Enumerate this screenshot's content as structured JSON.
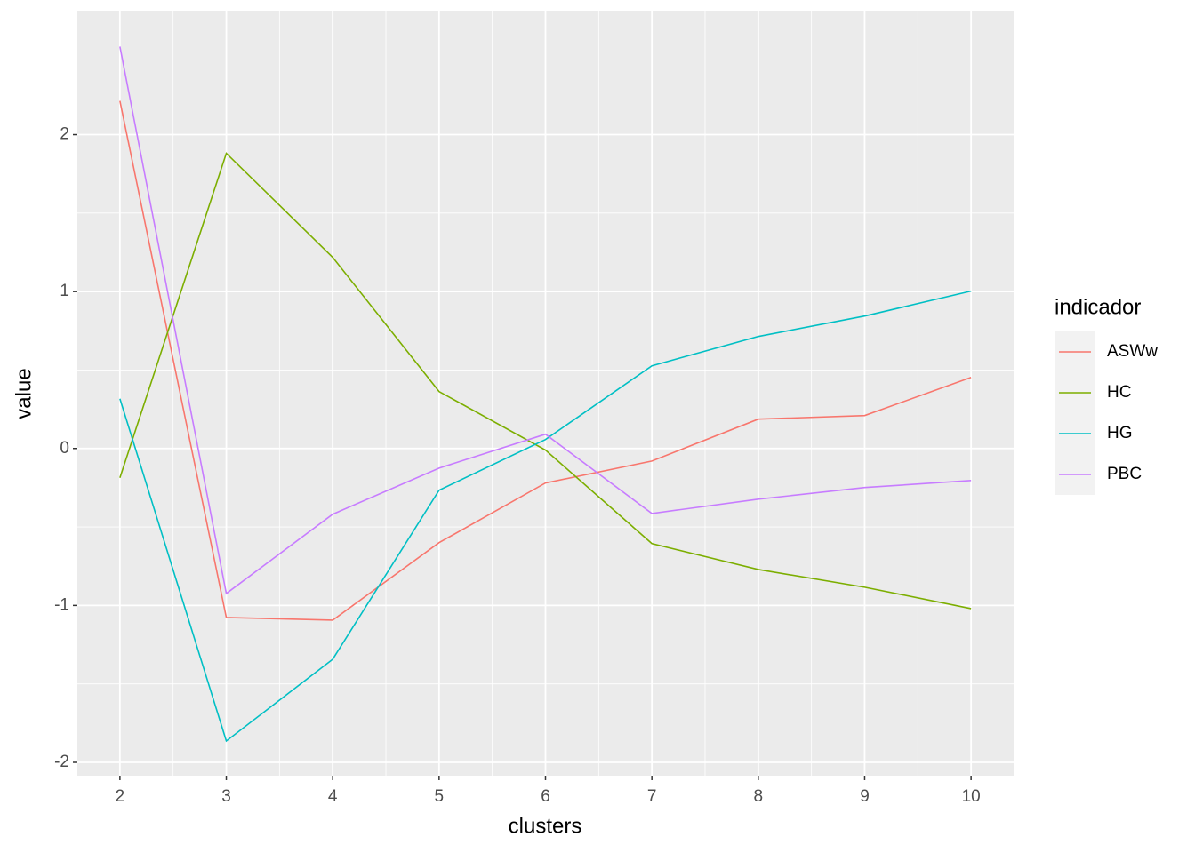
{
  "chart_data": {
    "type": "line",
    "x_label": "clusters",
    "y_label": "value",
    "legend_title": "indicador",
    "x": [
      2,
      3,
      4,
      5,
      6,
      7,
      8,
      9,
      10
    ],
    "series": [
      {
        "name": "ASWw",
        "color": "#F8766D",
        "values": [
          2.215,
          -1.077,
          -1.094,
          -0.6,
          -0.22,
          -0.08,
          0.187,
          0.21,
          0.453
        ]
      },
      {
        "name": "HC",
        "color": "#7CAE00",
        "values": [
          -0.187,
          1.881,
          1.218,
          0.363,
          -0.01,
          -0.606,
          -0.771,
          -0.884,
          -1.02
        ]
      },
      {
        "name": "HG",
        "color": "#00BFC4",
        "values": [
          0.317,
          -1.864,
          -1.343,
          -0.266,
          0.057,
          0.527,
          0.714,
          0.844,
          1.003
        ]
      },
      {
        "name": "PBC",
        "color": "#C77CFF",
        "values": [
          2.561,
          -0.924,
          -0.419,
          -0.125,
          0.091,
          -0.414,
          -0.323,
          -0.249,
          -0.204
        ]
      }
    ],
    "xlim": [
      1.6,
      10.4
    ],
    "ylim": [
      -2.085,
      2.79
    ],
    "xticks": [
      2,
      3,
      4,
      5,
      6,
      7,
      8,
      9,
      10
    ],
    "yticks": [
      -2,
      -1,
      0,
      1,
      2
    ],
    "grid": true,
    "legend": "right"
  }
}
